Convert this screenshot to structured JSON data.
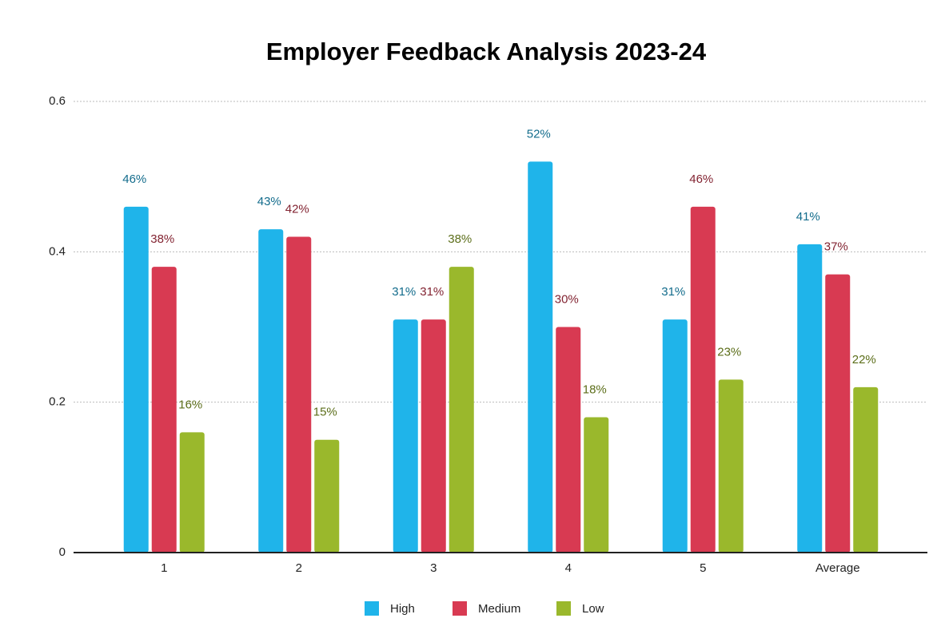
{
  "chart_data": {
    "type": "bar",
    "title": "Employer Feedback Analysis 2023-24",
    "categories": [
      "1",
      "2",
      "3",
      "4",
      "5",
      "Average"
    ],
    "series": [
      {
        "name": "High",
        "color": "#1fb4ea",
        "values": [
          0.46,
          0.43,
          0.31,
          0.52,
          0.31,
          0.41
        ],
        "value_labels": [
          "46%",
          "43%",
          "31%",
          "52%",
          "31%",
          "41%"
        ]
      },
      {
        "name": "Medium",
        "color": "#d83a52",
        "values": [
          0.38,
          0.42,
          0.31,
          0.3,
          0.46,
          0.37
        ],
        "value_labels": [
          "38%",
          "42%",
          "31%",
          "30%",
          "46%",
          "37%"
        ]
      },
      {
        "name": "Low",
        "color": "#9ab82c",
        "values": [
          0.16,
          0.15,
          0.38,
          0.18,
          0.23,
          0.22
        ],
        "value_labels": [
          "16%",
          "15%",
          "38%",
          "18%",
          "23%",
          "22%"
        ]
      }
    ],
    "ylim": [
      0,
      0.6
    ],
    "yticks": [
      0,
      0.2,
      0.4,
      0.6
    ],
    "grid": true,
    "legend": "bottom"
  }
}
